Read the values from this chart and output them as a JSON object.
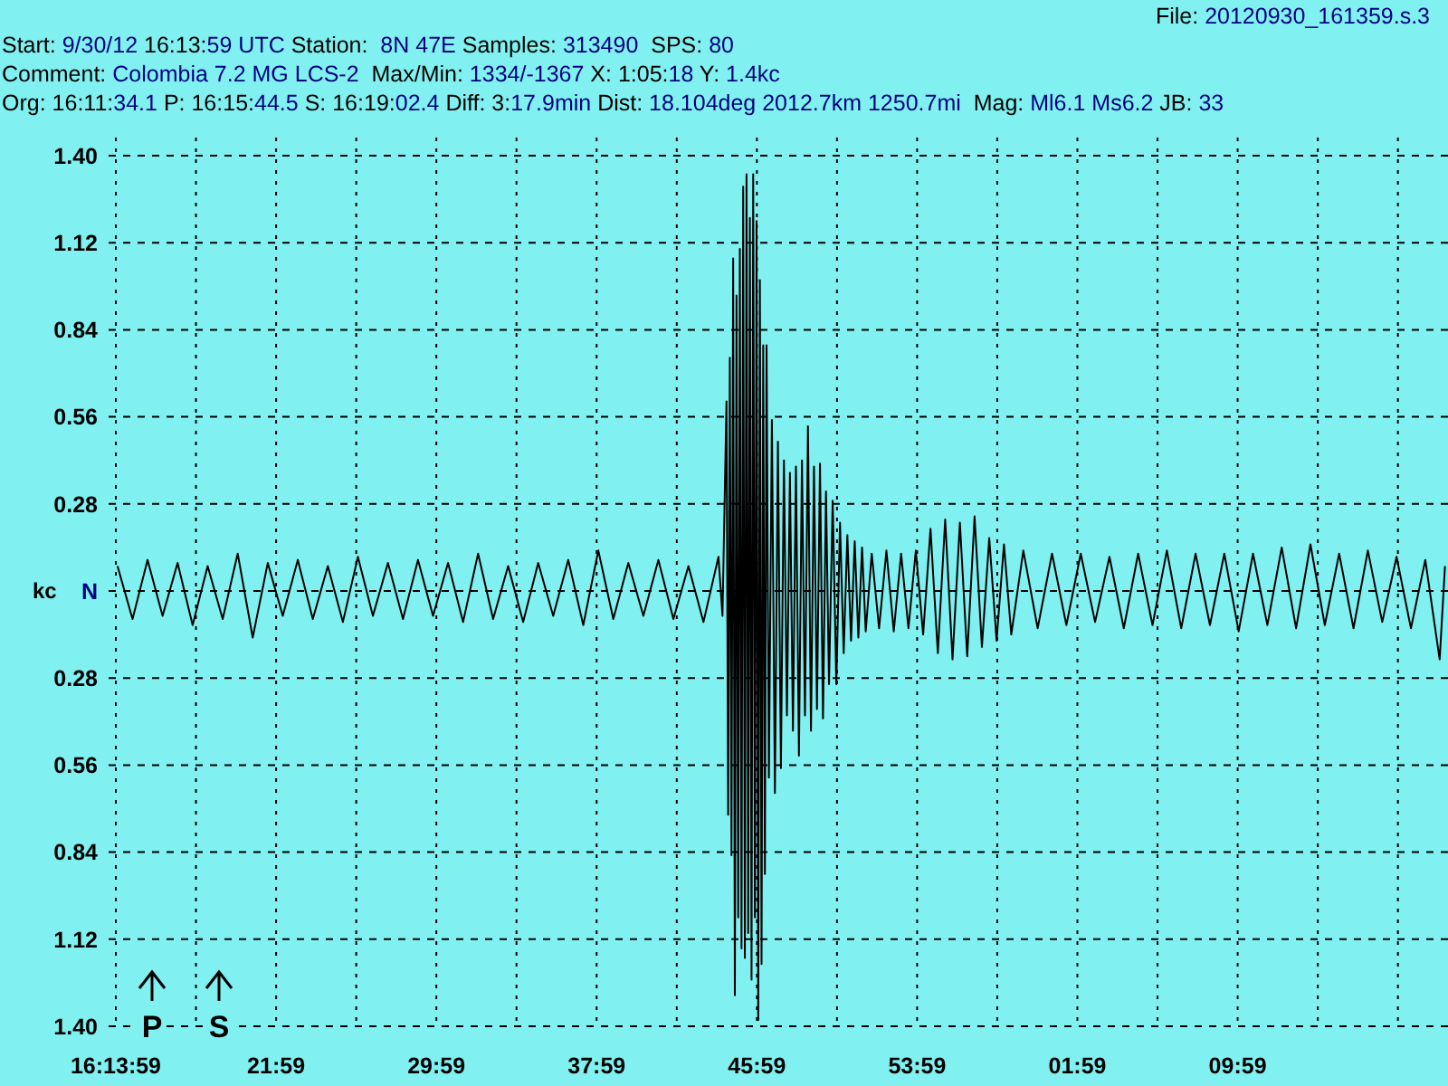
{
  "chart_data": {
    "type": "line",
    "annotations": [
      "File: 20120930_161359.s.3",
      "Start: 9/30/12 16:13:59 UTC Station:  8N 47E Samples: 313490  SPS: 80",
      "Comment: Colombia 7.2 MG LCS-2  Max/Min: 1334/-1367 X: 1:05:18 Y: 1.4kc",
      "Org: 16:11:34.1 P: 16:15:44.5 S: 16:19:02.4 Diff: 3:17.9min Dist: 18.104deg 2012.7km 1250.7mi  Mag: Ml6.1 Ms6.2 JB: 33",
      "P",
      "S"
    ],
    "ylabel": "kc",
    "xlim": [
      "2012-09-30T16:13:59",
      "2012-09-30T17:20:29"
    ],
    "xticks": [
      {
        "value": "2012-09-30T16:13:59",
        "label": "16:13:59"
      },
      {
        "value": "2012-09-30T16:17:59",
        "label": null
      },
      {
        "value": "2012-09-30T16:21:59",
        "label": "21:59"
      },
      {
        "value": "2012-09-30T16:25:59",
        "label": null
      },
      {
        "value": "2012-09-30T16:29:59",
        "label": "29:59"
      },
      {
        "value": "2012-09-30T16:33:59",
        "label": null
      },
      {
        "value": "2012-09-30T16:37:59",
        "label": "37:59"
      },
      {
        "value": "2012-09-30T16:41:59",
        "label": null
      },
      {
        "value": "2012-09-30T16:45:59",
        "label": "45:59"
      },
      {
        "value": "2012-09-30T16:49:59",
        "label": null
      },
      {
        "value": "2012-09-30T16:53:59",
        "label": "53:59"
      },
      {
        "value": "2012-09-30T16:57:59",
        "label": null
      },
      {
        "value": "2012-09-30T17:01:59",
        "label": "01:59"
      },
      {
        "value": "2012-09-30T17:05:59",
        "label": null
      },
      {
        "value": "2012-09-30T17:09:59",
        "label": "09:59"
      },
      {
        "value": "2012-09-30T17:13:59",
        "label": null
      },
      {
        "value": "2012-09-30T17:17:59",
        "label": null
      }
    ],
    "ylim": [
      -1.4,
      1.4
    ],
    "yticks": [
      {
        "value": 1.4,
        "label": "1.40"
      },
      1.12,
      0.84,
      0.56,
      0.28,
      {
        "value": 0,
        "label": "N"
      },
      {
        "value": -0.28,
        "label": "0.28"
      },
      {
        "value": -0.56,
        "label": "0.56"
      },
      {
        "value": -0.84,
        "label": "0.84"
      },
      {
        "value": -1.12,
        "label": "1.12"
      },
      {
        "value": -1.4,
        "label": "1.40"
      }
    ],
    "grid": true,
    "series": [
      {
        "color": "#000000",
        "x": [
          "2012-09-30T16:14:04",
          "2012-09-30T16:14:49",
          "2012-09-30T16:15:34",
          "2012-09-30T16:16:19",
          "2012-09-30T16:17:04",
          "2012-09-30T16:17:49",
          "2012-09-30T16:18:34",
          "2012-09-30T16:19:19",
          "2012-09-30T16:20:04",
          "2012-09-30T16:20:49",
          "2012-09-30T16:21:34",
          "2012-09-30T16:22:19",
          "2012-09-30T16:23:04",
          "2012-09-30T16:23:49",
          "2012-09-30T16:24:34",
          "2012-09-30T16:25:19",
          "2012-09-30T16:26:04",
          "2012-09-30T16:26:49",
          "2012-09-30T16:27:34",
          "2012-09-30T16:28:19",
          "2012-09-30T16:29:04",
          "2012-09-30T16:29:49",
          "2012-09-30T16:30:34",
          "2012-09-30T16:31:19",
          "2012-09-30T16:32:04",
          "2012-09-30T16:32:49",
          "2012-09-30T16:33:34",
          "2012-09-30T16:34:19",
          "2012-09-30T16:35:04",
          "2012-09-30T16:35:49",
          "2012-09-30T16:36:34",
          "2012-09-30T16:37:19",
          "2012-09-30T16:38:04",
          "2012-09-30T16:38:49",
          "2012-09-30T16:39:34",
          "2012-09-30T16:40:19",
          "2012-09-30T16:41:04",
          "2012-09-30T16:41:49",
          "2012-09-30T16:42:34",
          "2012-09-30T16:43:19",
          "2012-09-30T16:44:04",
          "2012-09-30T16:44:16",
          "2012-09-30T16:44:28",
          "2012-09-30T16:44:33",
          "2012-09-30T16:44:38",
          "2012-09-30T16:44:43",
          "2012-09-30T16:44:48",
          "2012-09-30T16:44:53",
          "2012-09-30T16:44:58",
          "2012-09-30T16:45:03",
          "2012-09-30T16:45:08",
          "2012-09-30T16:45:13",
          "2012-09-30T16:45:18",
          "2012-09-30T16:45:23",
          "2012-09-30T16:45:28",
          "2012-09-30T16:45:33",
          "2012-09-30T16:45:38",
          "2012-09-30T16:45:43",
          "2012-09-30T16:45:48",
          "2012-09-30T16:45:53",
          "2012-09-30T16:45:58",
          "2012-09-30T16:46:03",
          "2012-09-30T16:46:08",
          "2012-09-30T16:46:13",
          "2012-09-30T16:46:18",
          "2012-09-30T16:46:23",
          "2012-09-30T16:46:28",
          "2012-09-30T16:46:35",
          "2012-09-30T16:46:44",
          "2012-09-30T16:46:53",
          "2012-09-30T16:47:02",
          "2012-09-30T16:47:11",
          "2012-09-30T16:47:20",
          "2012-09-30T16:47:29",
          "2012-09-30T16:47:38",
          "2012-09-30T16:47:47",
          "2012-09-30T16:47:56",
          "2012-09-30T16:48:05",
          "2012-09-30T16:48:14",
          "2012-09-30T16:48:23",
          "2012-09-30T16:48:32",
          "2012-09-30T16:48:41",
          "2012-09-30T16:48:50",
          "2012-09-30T16:48:59",
          "2012-09-30T16:49:08",
          "2012-09-30T16:49:17",
          "2012-09-30T16:49:26",
          "2012-09-30T16:49:35",
          "2012-09-30T16:49:46",
          "2012-09-30T16:49:57",
          "2012-09-30T16:50:08",
          "2012-09-30T16:50:19",
          "2012-09-30T16:50:30",
          "2012-09-30T16:50:41",
          "2012-09-30T16:50:52",
          "2012-09-30T16:51:03",
          "2012-09-30T16:51:14",
          "2012-09-30T16:51:25",
          "2012-09-30T16:51:43",
          "2012-09-30T16:52:05",
          "2012-09-30T16:52:27",
          "2012-09-30T16:52:49",
          "2012-09-30T16:53:11",
          "2012-09-30T16:53:33",
          "2012-09-30T16:53:55",
          "2012-09-30T16:54:17",
          "2012-09-30T16:54:39",
          "2012-09-30T16:55:01",
          "2012-09-30T16:55:23",
          "2012-09-30T16:55:45",
          "2012-09-30T16:56:07",
          "2012-09-30T16:56:29",
          "2012-09-30T16:56:51",
          "2012-09-30T16:57:13",
          "2012-09-30T16:57:35",
          "2012-09-30T16:57:57",
          "2012-09-30T16:58:19",
          "2012-09-30T16:58:41",
          "2012-09-30T16:59:17",
          "2012-09-30T17:00:00",
          "2012-09-30T17:00:43",
          "2012-09-30T17:01:26",
          "2012-09-30T17:02:09",
          "2012-09-30T17:02:52",
          "2012-09-30T17:03:35",
          "2012-09-30T17:04:18",
          "2012-09-30T17:05:01",
          "2012-09-30T17:05:44",
          "2012-09-30T17:06:27",
          "2012-09-30T17:07:10",
          "2012-09-30T17:07:53",
          "2012-09-30T17:08:36",
          "2012-09-30T17:09:19",
          "2012-09-30T17:10:02",
          "2012-09-30T17:10:45",
          "2012-09-30T17:11:28",
          "2012-09-30T17:12:11",
          "2012-09-30T17:12:54",
          "2012-09-30T17:13:37",
          "2012-09-30T17:14:20",
          "2012-09-30T17:15:03",
          "2012-09-30T17:15:46",
          "2012-09-30T17:16:29",
          "2012-09-30T17:17:12",
          "2012-09-30T17:17:55",
          "2012-09-30T17:18:38",
          "2012-09-30T17:19:21",
          "2012-09-30T17:20:04",
          "2012-09-30T17:20:20"
        ],
        "values": [
          0.08,
          -0.09,
          0.1,
          -0.08,
          0.09,
          -0.11,
          0.08,
          -0.09,
          0.12,
          -0.15,
          0.09,
          -0.08,
          0.1,
          -0.09,
          0.08,
          -0.1,
          0.11,
          -0.08,
          0.09,
          -0.09,
          0.1,
          -0.08,
          0.09,
          -0.1,
          0.12,
          -0.09,
          0.08,
          -0.1,
          0.09,
          -0.08,
          0.1,
          -0.11,
          0.13,
          -0.09,
          0.09,
          -0.08,
          0.1,
          -0.09,
          0.08,
          -0.1,
          0.11,
          -0.08,
          0.61,
          -0.72,
          0.75,
          -0.85,
          1.07,
          -1.3,
          0.95,
          -1.05,
          1.1,
          -1.15,
          1.3,
          -1.18,
          1.34,
          -1.1,
          1.2,
          -1.25,
          1.34,
          -1.05,
          1.19,
          -1.38,
          1.0,
          -1.2,
          0.79,
          -0.91,
          0.79,
          -0.6,
          0.55,
          -0.65,
          0.48,
          -0.57,
          0.42,
          -0.4,
          0.38,
          -0.45,
          0.4,
          -0.53,
          0.42,
          -0.4,
          0.53,
          -0.45,
          0.4,
          -0.38,
          0.41,
          -0.41,
          0.32,
          -0.3,
          0.29,
          -0.3,
          0.22,
          -0.2,
          0.18,
          -0.16,
          0.16,
          -0.15,
          0.14,
          -0.13,
          0.12,
          -0.12,
          0.13,
          -0.13,
          0.12,
          -0.12,
          0.13,
          -0.14,
          0.2,
          -0.2,
          0.23,
          -0.22,
          0.22,
          -0.21,
          0.24,
          -0.18,
          0.17,
          -0.16,
          0.15,
          -0.14,
          0.13,
          -0.12,
          0.12,
          -0.11,
          0.12,
          -0.1,
          0.11,
          -0.12,
          0.12,
          -0.11,
          0.13,
          -0.12,
          0.12,
          -0.11,
          0.12,
          -0.13,
          0.12,
          -0.11,
          0.14,
          -0.12,
          0.15,
          -0.11,
          0.12,
          -0.12,
          0.13,
          -0.1,
          0.11,
          -0.12,
          0.1,
          -0.22,
          0.08
        ]
      }
    ]
  }
}
